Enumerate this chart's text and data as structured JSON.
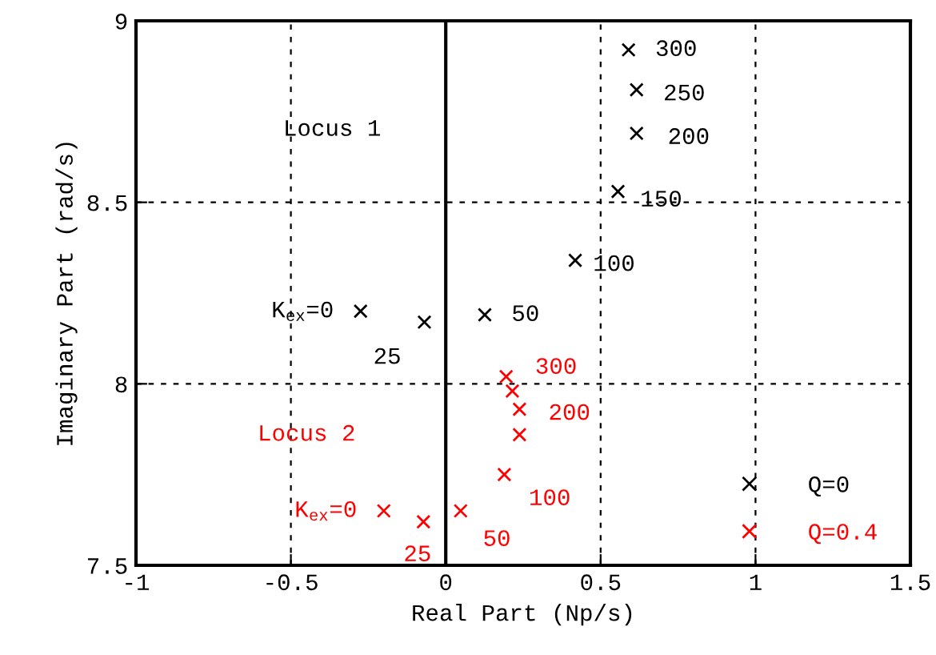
{
  "chart_data": {
    "type": "scatter",
    "xlabel": "Real Part (Np/s)",
    "ylabel": "Imaginary Part (rad/s)",
    "xlim": [
      -1,
      1.5
    ],
    "ylim": [
      7.5,
      9
    ],
    "xticks": [
      -1,
      -0.5,
      0,
      0.5,
      1,
      1.5
    ],
    "yticks": [
      7.5,
      8,
      8.5,
      9
    ],
    "grid": true,
    "legend": "bottom right",
    "marker": "cross",
    "ref_lines": [
      {
        "axis": "x",
        "value": 0,
        "color": "#000000",
        "line_style": "solid"
      }
    ],
    "series": [
      {
        "name": "Q=0",
        "color": "#000000",
        "x": [
          -0.275,
          -0.069,
          0.126,
          0.418,
          0.556,
          0.616,
          0.616,
          0.59
        ],
        "values": [
          8.2,
          8.17,
          8.19,
          8.34,
          8.53,
          8.69,
          8.81,
          8.92
        ]
      },
      {
        "name": "Q=0.4",
        "color": "#ff0000",
        "x": [
          -0.2,
          -0.072,
          0.048,
          0.189,
          0.238,
          0.238,
          0.215,
          0.195
        ],
        "values": [
          7.65,
          7.62,
          7.65,
          7.75,
          7.86,
          7.93,
          7.98,
          8.02
        ]
      }
    ],
    "annotations": [
      "Locus 1",
      "Locus 2",
      {
        "text": "K$_{ex}$=0",
        "x": -0.275,
        "y": 8.2
      },
      {
        "text": "25",
        "x": -0.069,
        "y": 8.17
      },
      {
        "text": "50",
        "x": 0.126,
        "y": 8.19
      },
      {
        "text": "100",
        "x": 0.418,
        "y": 8.34
      },
      {
        "text": "150",
        "x": 0.556,
        "y": 8.53
      },
      {
        "text": "200",
        "x": 0.616,
        "y": 8.69
      },
      {
        "text": "250",
        "x": 0.616,
        "y": 8.81
      },
      {
        "text": "300",
        "x": 0.59,
        "y": 8.92
      },
      {
        "text": "K$_{ex}$=0",
        "x": -0.2,
        "y": 7.65
      },
      {
        "text": "25",
        "x": -0.072,
        "y": 7.62
      },
      {
        "text": "50",
        "x": 0.048,
        "y": 7.65
      },
      {
        "text": "100",
        "x": 0.189,
        "y": 7.75
      },
      {
        "text": "200",
        "x": 0.238,
        "y": 7.93
      },
      {
        "text": "300",
        "x": 0.195,
        "y": 8.02
      }
    ]
  }
}
